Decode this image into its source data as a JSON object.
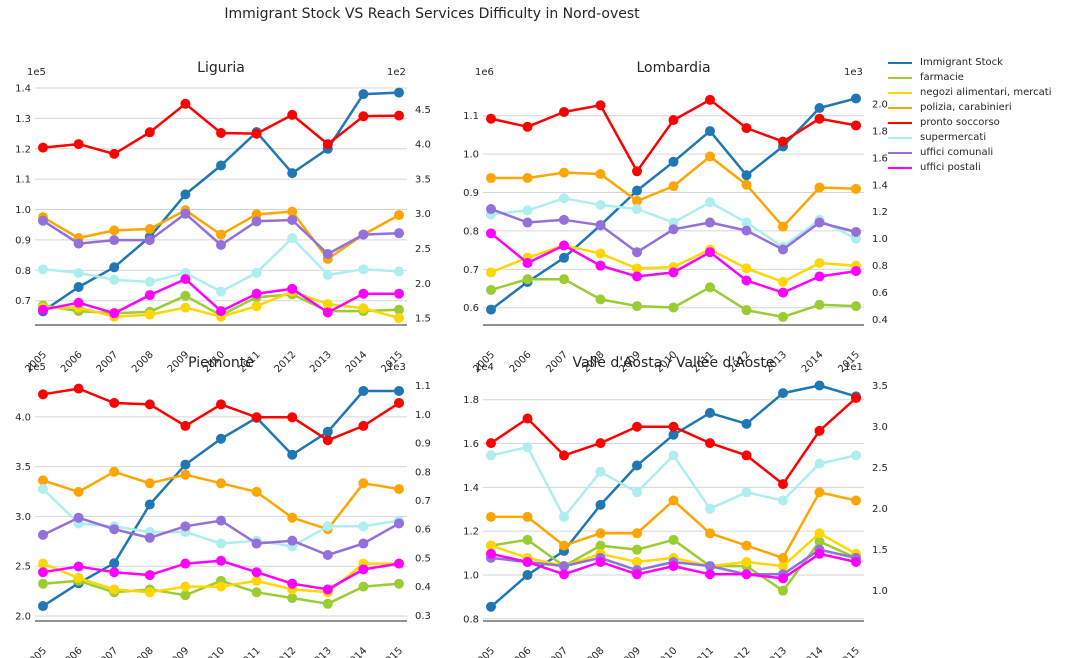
{
  "suptitle": "Immigrant Stock VS Reach Services Difficulty in Nord-ovest",
  "colors": {
    "Immigrant Stock": "#1f77b4",
    "farmacie": "#9acd32",
    "negozi alimentari, mercati": "#ffd700",
    "polizia, carabinieri": "#ffa500",
    "pronto soccorso": "#ff0000",
    "supermercati": "#afeeee",
    "uffici comunali": "#9370db",
    "uffici postali": "#ff00ff"
  },
  "legend": [
    "Immigrant Stock",
    "farmacie",
    "negozi alimentari, mercati",
    "polizia, carabinieri",
    "pronto soccorso",
    "supermercati",
    "uffici comunali",
    "uffici postali"
  ],
  "chart_data": [
    {
      "type": "line",
      "title": "Liguria",
      "x": [
        "2005",
        "2006",
        "2007",
        "2008",
        "2009",
        "2010",
        "2011",
        "2012",
        "2013",
        "2014",
        "2015"
      ],
      "left_axis": {
        "offset_label": "1e5",
        "ticks": [
          "0.7",
          "0.8",
          "0.9",
          "1.0",
          "1.1",
          "1.2",
          "1.3",
          "1.4"
        ],
        "ylim": [
          0.62,
          1.41
        ]
      },
      "right_axis": {
        "offset_label": "1e2",
        "ticks": [
          "1.5",
          "2.0",
          "2.5",
          "3.0",
          "3.5",
          "4.0",
          "4.5"
        ],
        "ylim": [
          1.4,
          4.85
        ]
      },
      "series": [
        {
          "name": "Immigrant Stock",
          "axis": "left",
          "values": [
            0.665,
            0.745,
            0.81,
            0.91,
            1.05,
            1.145,
            1.255,
            1.12,
            1.2,
            1.38,
            1.385
          ]
        },
        {
          "name": "farmacie",
          "axis": "right",
          "values": [
            1.68,
            1.6,
            1.57,
            1.59,
            1.82,
            1.54,
            1.8,
            1.84,
            1.6,
            1.6,
            1.62
          ]
        },
        {
          "name": "negozi alimentari, mercati",
          "axis": "right",
          "values": [
            1.65,
            1.65,
            1.52,
            1.55,
            1.65,
            1.52,
            1.67,
            1.88,
            1.7,
            1.64,
            1.5
          ]
        },
        {
          "name": "polizia, carabinieri",
          "axis": "right",
          "values": [
            2.95,
            2.65,
            2.76,
            2.78,
            3.05,
            2.7,
            2.99,
            3.03,
            2.35,
            2.7,
            2.98
          ]
        },
        {
          "name": "pronto soccorso",
          "axis": "right",
          "values": [
            3.95,
            4.0,
            3.86,
            4.17,
            4.58,
            4.16,
            4.15,
            4.42,
            4.0,
            4.4,
            4.41
          ]
        },
        {
          "name": "supermercati",
          "axis": "right",
          "values": [
            2.2,
            2.15,
            2.05,
            2.02,
            2.15,
            1.88,
            2.15,
            2.65,
            2.12,
            2.2,
            2.17
          ]
        },
        {
          "name": "uffici comunali",
          "axis": "right",
          "values": [
            2.9,
            2.57,
            2.62,
            2.62,
            3.0,
            2.55,
            2.89,
            2.91,
            2.42,
            2.7,
            2.72
          ]
        },
        {
          "name": "uffici postali",
          "axis": "right",
          "values": [
            1.62,
            1.72,
            1.57,
            1.83,
            2.06,
            1.6,
            1.85,
            1.92,
            1.58,
            1.85,
            1.85
          ]
        }
      ]
    },
    {
      "type": "line",
      "title": "Lombardia",
      "x": [
        "2005",
        "2006",
        "2007",
        "2008",
        "2009",
        "2010",
        "2011",
        "2012",
        "2013",
        "2014",
        "2015"
      ],
      "left_axis": {
        "offset_label": "1e6",
        "ticks": [
          "0.6",
          "0.7",
          "0.8",
          "0.9",
          "1.0",
          "1.1"
        ],
        "ylim": [
          0.555,
          1.18
        ]
      },
      "right_axis": {
        "offset_label": "1e3",
        "ticks": [
          "0.4",
          "0.6",
          "0.8",
          "1.0",
          "1.2",
          "1.4",
          "1.6",
          "1.8",
          "2.0"
        ],
        "ylim": [
          0.36,
          2.14
        ]
      },
      "series": [
        {
          "name": "Immigrant Stock",
          "axis": "left",
          "values": [
            0.595,
            0.667,
            0.73,
            0.815,
            0.905,
            0.98,
            1.06,
            0.945,
            1.02,
            1.12,
            1.145
          ]
        },
        {
          "name": "farmacie",
          "axis": "right",
          "values": [
            0.62,
            0.7,
            0.7,
            0.55,
            0.5,
            0.49,
            0.64,
            0.47,
            0.42,
            0.51,
            0.5
          ]
        },
        {
          "name": "negozi alimentari, mercati",
          "axis": "right",
          "values": [
            0.75,
            0.86,
            0.95,
            0.89,
            0.78,
            0.79,
            0.92,
            0.78,
            0.68,
            0.82,
            0.8
          ]
        },
        {
          "name": "polizia, carabinieri",
          "axis": "right",
          "values": [
            1.45,
            1.45,
            1.49,
            1.48,
            1.28,
            1.39,
            1.61,
            1.4,
            1.09,
            1.38,
            1.37
          ]
        },
        {
          "name": "pronto soccorso",
          "axis": "right",
          "values": [
            1.89,
            1.83,
            1.94,
            1.99,
            1.5,
            1.88,
            2.03,
            1.82,
            1.72,
            1.89,
            1.84
          ]
        },
        {
          "name": "supermercati",
          "axis": "right",
          "values": [
            1.18,
            1.21,
            1.3,
            1.25,
            1.22,
            1.12,
            1.27,
            1.12,
            0.94,
            1.14,
            1.0
          ]
        },
        {
          "name": "uffici comunali",
          "axis": "right",
          "values": [
            1.22,
            1.12,
            1.14,
            1.1,
            0.9,
            1.07,
            1.12,
            1.06,
            0.92,
            1.12,
            1.05
          ]
        },
        {
          "name": "uffici postali",
          "axis": "right",
          "values": [
            1.04,
            0.82,
            0.95,
            0.8,
            0.72,
            0.75,
            0.9,
            0.69,
            0.6,
            0.72,
            0.76
          ]
        }
      ]
    },
    {
      "type": "line",
      "title": "Piemonte",
      "x": [
        "2005",
        "2006",
        "2007",
        "2008",
        "2009",
        "2010",
        "2011",
        "2012",
        "2013",
        "2014",
        "2015"
      ],
      "left_axis": {
        "offset_label": "1e5",
        "ticks": [
          "2.0",
          "2.5",
          "3.0",
          "3.5",
          "4.0"
        ],
        "ylim": [
          1.95,
          4.37
        ]
      },
      "right_axis": {
        "offset_label": "1e3",
        "ticks": [
          "0.3",
          "0.4",
          "0.5",
          "0.6",
          "0.7",
          "0.8",
          "0.9",
          "1.0",
          "1.1"
        ],
        "ylim": [
          0.28,
          1.12
        ]
      },
      "series": [
        {
          "name": "Immigrant Stock",
          "axis": "left",
          "values": [
            2.1,
            2.33,
            2.53,
            3.12,
            3.52,
            3.78,
            3.99,
            3.62,
            3.85,
            4.26,
            4.26
          ]
        },
        {
          "name": "farmacie",
          "axis": "right",
          "values": [
            0.41,
            0.42,
            0.38,
            0.39,
            0.37,
            0.42,
            0.38,
            0.36,
            0.34,
            0.4,
            0.41
          ]
        },
        {
          "name": "negozi alimentari, mercati",
          "axis": "right",
          "values": [
            0.48,
            0.43,
            0.39,
            0.38,
            0.4,
            0.4,
            0.42,
            0.39,
            0.38,
            0.48,
            0.48
          ]
        },
        {
          "name": "polizia, carabinieri",
          "axis": "right",
          "values": [
            0.77,
            0.73,
            0.8,
            0.76,
            0.79,
            0.76,
            0.73,
            0.64,
            0.6,
            0.76,
            0.74
          ]
        },
        {
          "name": "pronto soccorso",
          "axis": "right",
          "values": [
            1.07,
            1.09,
            1.04,
            1.035,
            0.96,
            1.035,
            0.99,
            0.99,
            0.91,
            0.96,
            1.04
          ]
        },
        {
          "name": "supermercati",
          "axis": "right",
          "values": [
            0.74,
            0.62,
            0.61,
            0.59,
            0.59,
            0.55,
            0.56,
            0.54,
            0.61,
            0.61,
            0.63
          ]
        },
        {
          "name": "uffici comunali",
          "axis": "right",
          "values": [
            0.58,
            0.64,
            0.6,
            0.57,
            0.61,
            0.63,
            0.55,
            0.56,
            0.51,
            0.55,
            0.62
          ]
        },
        {
          "name": "uffici postali",
          "axis": "right",
          "values": [
            0.45,
            0.47,
            0.45,
            0.44,
            0.48,
            0.49,
            0.45,
            0.41,
            0.39,
            0.46,
            0.48
          ]
        }
      ]
    },
    {
      "type": "line",
      "title": "Valle d'Aosta / Vallée d'Aoste",
      "x": [
        "2005",
        "2006",
        "2007",
        "2008",
        "2009",
        "2010",
        "2011",
        "2012",
        "2013",
        "2014",
        "2015"
      ],
      "left_axis": {
        "offset_label": "1e4",
        "ticks": [
          "0.8",
          "1.0",
          "1.2",
          "1.4",
          "1.6",
          "1.8"
        ],
        "ylim": [
          0.79,
          1.89
        ]
      },
      "right_axis": {
        "offset_label": "1e1",
        "ticks": [
          "1.0",
          "1.5",
          "2.0",
          "2.5",
          "3.0",
          "3.5"
        ],
        "ylim": [
          0.63,
          3.57
        ]
      },
      "series": [
        {
          "name": "Immigrant Stock",
          "axis": "left",
          "values": [
            0.855,
            1.0,
            1.11,
            1.32,
            1.5,
            1.64,
            1.74,
            1.69,
            1.83,
            1.865,
            1.815
          ]
        },
        {
          "name": "farmacie",
          "axis": "right",
          "values": [
            1.55,
            1.62,
            1.3,
            1.55,
            1.5,
            1.62,
            1.3,
            1.3,
            1.0,
            1.6,
            1.4
          ]
        },
        {
          "name": "negozi alimentari, mercati",
          "axis": "right",
          "values": [
            1.55,
            1.4,
            1.3,
            1.45,
            1.35,
            1.4,
            1.3,
            1.35,
            1.3,
            1.7,
            1.45
          ]
        },
        {
          "name": "polizia, carabinieri",
          "axis": "right",
          "values": [
            1.9,
            1.9,
            1.55,
            1.7,
            1.7,
            2.1,
            1.7,
            1.55,
            1.4,
            2.2,
            2.1
          ]
        },
        {
          "name": "pronto soccorso",
          "axis": "right",
          "values": [
            2.8,
            3.1,
            2.65,
            2.8,
            3.0,
            3.0,
            2.8,
            2.65,
            2.3,
            2.95,
            3.35
          ]
        },
        {
          "name": "supermercati",
          "axis": "right",
          "values": [
            2.65,
            2.75,
            1.9,
            2.45,
            2.2,
            2.65,
            2.0,
            2.2,
            2.1,
            2.55,
            2.65
          ]
        },
        {
          "name": "uffici comunali",
          "axis": "right",
          "values": [
            1.4,
            1.35,
            1.3,
            1.4,
            1.25,
            1.35,
            1.3,
            1.2,
            1.2,
            1.5,
            1.4
          ]
        },
        {
          "name": "uffici postali",
          "axis": "right",
          "values": [
            1.45,
            1.35,
            1.2,
            1.35,
            1.2,
            1.3,
            1.2,
            1.2,
            1.15,
            1.45,
            1.35
          ]
        }
      ]
    }
  ]
}
